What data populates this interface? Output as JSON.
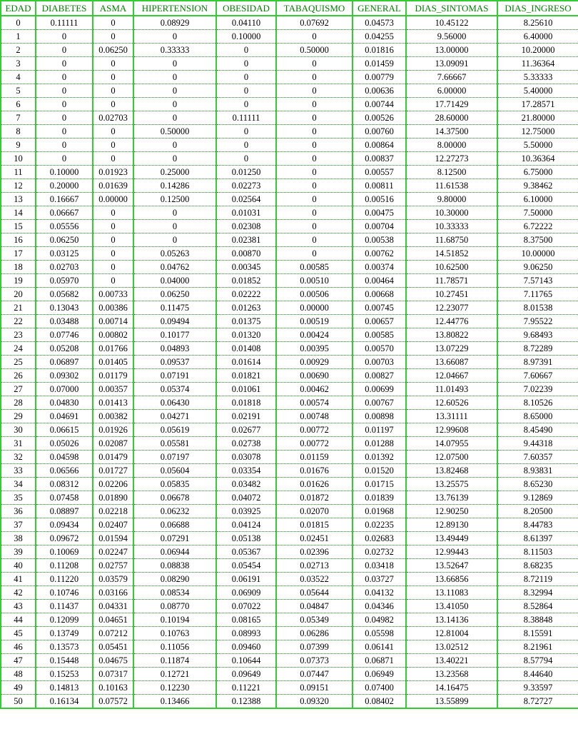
{
  "table": {
    "headers": [
      "EDAD",
      "DIABETES",
      "ASMA",
      "HIPERTENSION",
      "OBESIDAD",
      "TABAQUISMO",
      "GENERAL",
      "DIAS_SINTOMAS",
      "DIAS_INGRESO"
    ],
    "rows": [
      [
        "0",
        "0.11111",
        "0",
        "0.08929",
        "0.04110",
        "0.07692",
        "0.04573",
        "10.45122",
        "8.25610"
      ],
      [
        "1",
        "0",
        "0",
        "0",
        "0.10000",
        "0",
        "0.04255",
        "9.56000",
        "6.40000"
      ],
      [
        "2",
        "0",
        "0.06250",
        "0.33333",
        "0",
        "0.50000",
        "0.01816",
        "13.00000",
        "10.20000"
      ],
      [
        "3",
        "0",
        "0",
        "0",
        "0",
        "0",
        "0.01459",
        "13.09091",
        "11.36364"
      ],
      [
        "4",
        "0",
        "0",
        "0",
        "0",
        "0",
        "0.00779",
        "7.66667",
        "5.33333"
      ],
      [
        "5",
        "0",
        "0",
        "0",
        "0",
        "0",
        "0.00636",
        "6.00000",
        "5.40000"
      ],
      [
        "6",
        "0",
        "0",
        "0",
        "0",
        "0",
        "0.00744",
        "17.71429",
        "17.28571"
      ],
      [
        "7",
        "0",
        "0.02703",
        "0",
        "0.11111",
        "0",
        "0.00526",
        "28.60000",
        "21.80000"
      ],
      [
        "8",
        "0",
        "0",
        "0.50000",
        "0",
        "0",
        "0.00760",
        "14.37500",
        "12.75000"
      ],
      [
        "9",
        "0",
        "0",
        "0",
        "0",
        "0",
        "0.00864",
        "8.00000",
        "5.50000"
      ],
      [
        "10",
        "0",
        "0",
        "0",
        "0",
        "0",
        "0.00837",
        "12.27273",
        "10.36364"
      ],
      [
        "11",
        "0.10000",
        "0.01923",
        "0.25000",
        "0.01250",
        "0",
        "0.00557",
        "8.12500",
        "6.75000"
      ],
      [
        "12",
        "0.20000",
        "0.01639",
        "0.14286",
        "0.02273",
        "0",
        "0.00811",
        "11.61538",
        "9.38462"
      ],
      [
        "13",
        "0.16667",
        "0.00000",
        "0.12500",
        "0.02564",
        "0",
        "0.00516",
        "9.80000",
        "6.10000"
      ],
      [
        "14",
        "0.06667",
        "0",
        "0",
        "0.01031",
        "0",
        "0.00475",
        "10.30000",
        "7.50000"
      ],
      [
        "15",
        "0.05556",
        "0",
        "0",
        "0.02308",
        "0",
        "0.00704",
        "10.33333",
        "6.72222"
      ],
      [
        "16",
        "0.06250",
        "0",
        "0",
        "0.02381",
        "0",
        "0.00538",
        "11.68750",
        "8.37500"
      ],
      [
        "17",
        "0.03125",
        "0",
        "0.05263",
        "0.00870",
        "0",
        "0.00762",
        "14.51852",
        "10.00000"
      ],
      [
        "18",
        "0.02703",
        "0",
        "0.04762",
        "0.00345",
        "0.00585",
        "0.00374",
        "10.62500",
        "9.06250"
      ],
      [
        "19",
        "0.05970",
        "0",
        "0.04000",
        "0.01852",
        "0.00510",
        "0.00464",
        "11.78571",
        "7.57143"
      ],
      [
        "20",
        "0.05682",
        "0.00733",
        "0.06250",
        "0.02222",
        "0.00506",
        "0.00668",
        "10.27451",
        "7.11765"
      ],
      [
        "21",
        "0.13043",
        "0.00386",
        "0.11475",
        "0.01263",
        "0.00000",
        "0.00745",
        "12.23077",
        "8.01538"
      ],
      [
        "22",
        "0.03488",
        "0.00714",
        "0.09494",
        "0.01375",
        "0.00519",
        "0.00657",
        "12.44776",
        "7.95522"
      ],
      [
        "23",
        "0.07746",
        "0.00802",
        "0.10177",
        "0.01320",
        "0.00424",
        "0.00585",
        "13.80822",
        "9.68493"
      ],
      [
        "24",
        "0.05208",
        "0.01766",
        "0.04893",
        "0.01408",
        "0.00395",
        "0.00570",
        "13.07229",
        "8.72289"
      ],
      [
        "25",
        "0.06897",
        "0.01405",
        "0.09537",
        "0.01614",
        "0.00929",
        "0.00703",
        "13.66087",
        "8.97391"
      ],
      [
        "26",
        "0.09302",
        "0.01179",
        "0.07191",
        "0.01821",
        "0.00690",
        "0.00827",
        "12.04667",
        "7.60667"
      ],
      [
        "27",
        "0.07000",
        "0.00357",
        "0.05374",
        "0.01061",
        "0.00462",
        "0.00699",
        "11.01493",
        "7.02239"
      ],
      [
        "28",
        "0.04830",
        "0.01413",
        "0.06430",
        "0.01818",
        "0.00574",
        "0.00767",
        "12.60526",
        "8.10526"
      ],
      [
        "29",
        "0.04691",
        "0.00382",
        "0.04271",
        "0.02191",
        "0.00748",
        "0.00898",
        "13.31111",
        "8.65000"
      ],
      [
        "30",
        "0.06615",
        "0.01926",
        "0.05619",
        "0.02677",
        "0.00772",
        "0.01197",
        "12.99608",
        "8.45490"
      ],
      [
        "31",
        "0.05026",
        "0.02087",
        "0.05581",
        "0.02738",
        "0.00772",
        "0.01288",
        "14.07955",
        "9.44318"
      ],
      [
        "32",
        "0.04598",
        "0.01479",
        "0.07197",
        "0.03078",
        "0.01159",
        "0.01392",
        "12.07500",
        "7.60357"
      ],
      [
        "33",
        "0.06566",
        "0.01727",
        "0.05604",
        "0.03354",
        "0.01676",
        "0.01520",
        "13.82468",
        "8.93831"
      ],
      [
        "34",
        "0.08312",
        "0.02206",
        "0.05835",
        "0.03482",
        "0.01626",
        "0.01715",
        "13.25575",
        "8.65230"
      ],
      [
        "35",
        "0.07458",
        "0.01890",
        "0.06678",
        "0.04072",
        "0.01872",
        "0.01839",
        "13.76139",
        "9.12869"
      ],
      [
        "36",
        "0.08897",
        "0.02218",
        "0.06232",
        "0.03925",
        "0.02070",
        "0.01968",
        "12.90250",
        "8.20500"
      ],
      [
        "37",
        "0.09434",
        "0.02407",
        "0.06688",
        "0.04124",
        "0.01815",
        "0.02235",
        "12.89130",
        "8.44783"
      ],
      [
        "38",
        "0.09672",
        "0.01594",
        "0.07291",
        "0.05138",
        "0.02451",
        "0.02683",
        "13.49449",
        "8.61397"
      ],
      [
        "39",
        "0.10069",
        "0.02247",
        "0.06944",
        "0.05367",
        "0.02396",
        "0.02732",
        "12.99443",
        "8.11503"
      ],
      [
        "40",
        "0.11208",
        "0.02757",
        "0.08838",
        "0.05454",
        "0.02713",
        "0.03418",
        "13.52647",
        "8.68235"
      ],
      [
        "41",
        "0.11220",
        "0.03579",
        "0.08290",
        "0.06191",
        "0.03522",
        "0.03727",
        "13.66856",
        "8.72119"
      ],
      [
        "42",
        "0.10746",
        "0.03166",
        "0.08534",
        "0.06909",
        "0.05644",
        "0.04132",
        "13.11083",
        "8.32994"
      ],
      [
        "43",
        "0.11437",
        "0.04331",
        "0.08770",
        "0.07022",
        "0.04847",
        "0.04346",
        "13.41050",
        "8.52864"
      ],
      [
        "44",
        "0.12099",
        "0.04651",
        "0.10194",
        "0.08165",
        "0.05349",
        "0.04982",
        "13.14136",
        "8.38848"
      ],
      [
        "45",
        "0.13749",
        "0.07212",
        "0.10763",
        "0.08993",
        "0.06286",
        "0.05598",
        "12.81004",
        "8.15591"
      ],
      [
        "46",
        "0.13573",
        "0.05451",
        "0.11056",
        "0.09460",
        "0.07399",
        "0.06141",
        "13.02512",
        "8.21961"
      ],
      [
        "47",
        "0.15448",
        "0.04675",
        "0.11874",
        "0.10644",
        "0.07373",
        "0.06871",
        "13.40221",
        "8.57794"
      ],
      [
        "48",
        "0.15253",
        "0.07317",
        "0.12721",
        "0.09649",
        "0.07447",
        "0.06949",
        "13.23568",
        "8.44640"
      ],
      [
        "49",
        "0.14813",
        "0.10163",
        "0.12230",
        "0.11221",
        "0.09151",
        "0.07400",
        "14.16475",
        "9.33597"
      ],
      [
        "50",
        "0.16134",
        "0.07572",
        "0.13466",
        "0.12388",
        "0.09320",
        "0.08402",
        "13.55899",
        "8.72727"
      ]
    ]
  },
  "colors": {
    "border": "#33cc33",
    "header_text": "#008000",
    "row_divider": "#2a8a2a"
  }
}
